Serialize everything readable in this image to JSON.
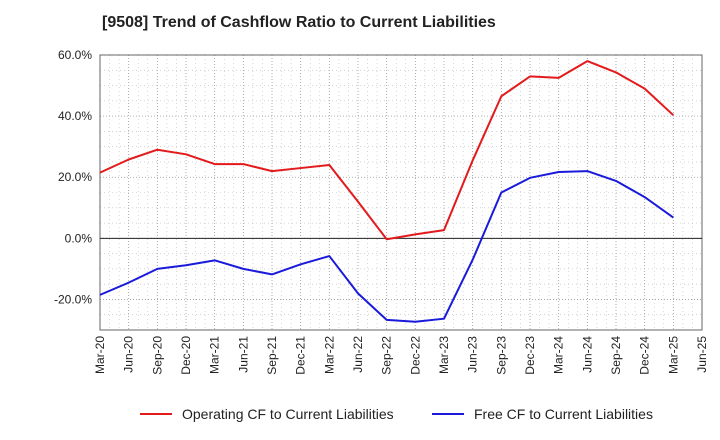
{
  "chart_data": {
    "type": "line",
    "title": "[9508]  Trend of Cashflow Ratio to Current Liabilities",
    "x": [
      "Mar-20",
      "Jun-20",
      "Sep-20",
      "Dec-20",
      "Mar-21",
      "Jun-21",
      "Sep-21",
      "Dec-21",
      "Mar-22",
      "Jun-22",
      "Sep-22",
      "Dec-22",
      "Mar-23",
      "Jun-23",
      "Sep-23",
      "Dec-23",
      "Mar-24",
      "Jun-24",
      "Sep-24",
      "Dec-24",
      "Mar-25",
      "Jun-25"
    ],
    "ylim": [
      -30,
      60
    ],
    "yticks": [
      -20,
      0,
      20,
      40,
      60
    ],
    "ytick_labels": [
      "-20.0%",
      "0.0%",
      "20.0%",
      "40.0%",
      "60.0%"
    ],
    "grid": true,
    "legend_position": "bottom",
    "series": [
      {
        "name": "Operating CF to Current Liabilities",
        "color": "#e31a1c",
        "values": [
          21.5,
          25.8,
          29.0,
          27.5,
          24.3,
          24.3,
          22.0,
          23.0,
          24.0,
          12.0,
          -0.3,
          1.3,
          2.7,
          25.5,
          46.5,
          53.0,
          52.5,
          58.0,
          54.3,
          49.0,
          40.3,
          null
        ]
      },
      {
        "name": "Free CF to Current Liabilities",
        "color": "#1a1adb",
        "values": [
          -18.5,
          -14.5,
          -10.0,
          -8.8,
          -7.2,
          -10.0,
          -11.8,
          -8.5,
          -5.8,
          -18.0,
          -26.7,
          -27.3,
          -26.3,
          -7.0,
          15.0,
          19.8,
          21.7,
          22.0,
          18.8,
          13.5,
          6.8,
          null
        ]
      }
    ]
  }
}
